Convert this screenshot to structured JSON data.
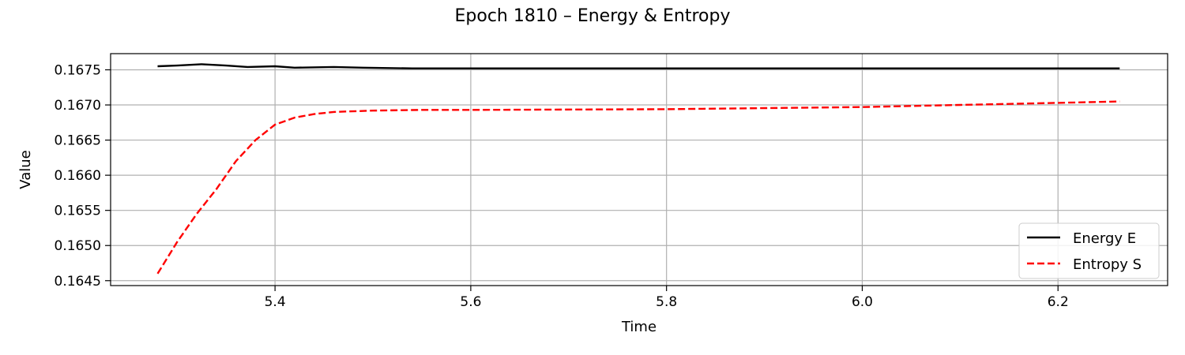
{
  "chart_data": {
    "type": "line",
    "title": "Epoch 1810 – Energy & Entropy",
    "xlabel": "Time",
    "ylabel": "Value",
    "xlim": [
      5.232,
      6.312
    ],
    "ylim": [
      0.16443,
      0.16773
    ],
    "xticks": [
      5.4,
      5.6,
      5.8,
      6.0,
      6.2
    ],
    "xtick_labels": [
      "5.4",
      "5.6",
      "5.8",
      "6.0",
      "6.2"
    ],
    "yticks": [
      0.1645,
      0.165,
      0.1655,
      0.166,
      0.1665,
      0.167,
      0.1675
    ],
    "ytick_labels": [
      "0.1645",
      "0.1650",
      "0.1655",
      "0.1660",
      "0.1665",
      "0.1670",
      "0.1675"
    ],
    "grid": true,
    "legend_position": "lower-right",
    "series": [
      {
        "name": "Energy E",
        "color": "#000000",
        "style": "solid",
        "points": [
          [
            5.28,
            0.16755
          ],
          [
            5.3,
            0.16756
          ],
          [
            5.325,
            0.16758
          ],
          [
            5.35,
            0.16756
          ],
          [
            5.372,
            0.16754
          ],
          [
            5.4,
            0.16755
          ],
          [
            5.42,
            0.16753
          ],
          [
            5.46,
            0.16754
          ],
          [
            5.49,
            0.16753
          ],
          [
            5.54,
            0.16752
          ],
          [
            5.6,
            0.16752
          ],
          [
            5.8,
            0.16752
          ],
          [
            6.0,
            0.16752
          ],
          [
            6.263,
            0.16752
          ]
        ]
      },
      {
        "name": "Entropy S",
        "color": "#ff0000",
        "style": "dashed",
        "points": [
          [
            5.28,
            0.1646
          ],
          [
            5.3,
            0.16505
          ],
          [
            5.32,
            0.16545
          ],
          [
            5.34,
            0.1658
          ],
          [
            5.36,
            0.1662
          ],
          [
            5.38,
            0.1665
          ],
          [
            5.4,
            0.16672
          ],
          [
            5.42,
            0.16682
          ],
          [
            5.44,
            0.16687
          ],
          [
            5.46,
            0.1669
          ],
          [
            5.5,
            0.16692
          ],
          [
            5.55,
            0.16693
          ],
          [
            5.6,
            0.16693
          ],
          [
            5.8,
            0.16694
          ],
          [
            6.0,
            0.16697
          ],
          [
            6.1,
            0.167
          ],
          [
            6.2,
            0.16703
          ],
          [
            6.263,
            0.16705
          ]
        ]
      }
    ]
  }
}
